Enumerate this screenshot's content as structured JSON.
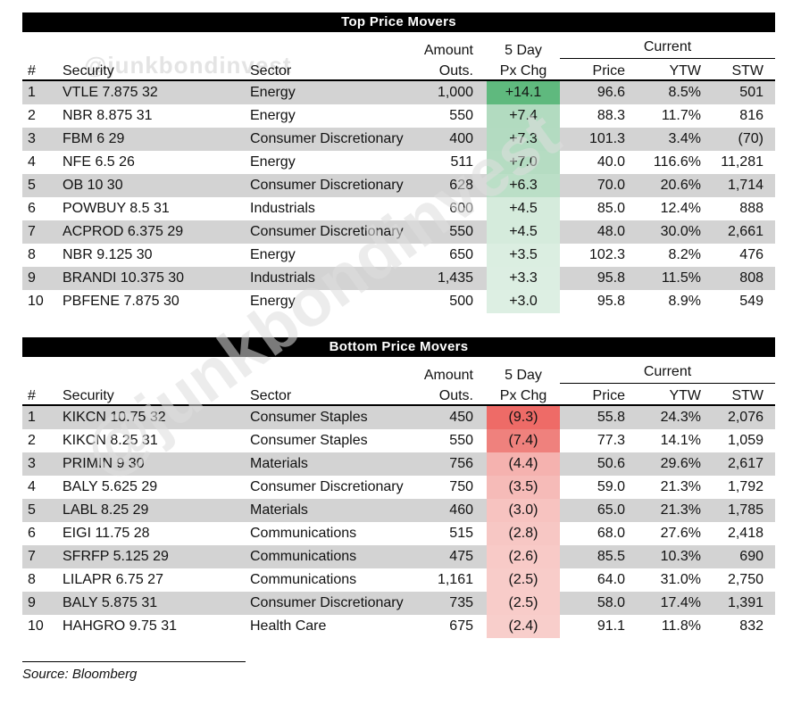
{
  "watermark": {
    "handle": "@junkbondinvest"
  },
  "source_note": "Source: Bloomberg",
  "colors": {
    "row_stripe": "#d3d3d3",
    "positive_max": "#5fb97e",
    "negative_max": "#ee6b67",
    "title_bar_bg": "#000000",
    "title_bar_text": "#ffffff"
  },
  "chart_data": [
    {
      "type": "table",
      "title": "Top Price Movers",
      "header": {
        "num": "#",
        "security": "Security",
        "sector": "Sector",
        "amount_line1": "Amount",
        "amount_line2": "Outs.",
        "five_day_line1": "5 Day",
        "five_day_line2": "Px Chg",
        "current_group": "Current",
        "price": "Price",
        "ytw": "YTW",
        "stw": "STW"
      },
      "rows": [
        {
          "num": "1",
          "security": "VTLE 7.875 32",
          "sector": "Energy",
          "amount_outs": "1,000",
          "px_chg": "+14.1",
          "px_chg_color": "#5fb97e",
          "price": "96.6",
          "ytw": "8.5%",
          "stw": "501"
        },
        {
          "num": "2",
          "security": "NBR 8.875 31",
          "sector": "Energy",
          "amount_outs": "550",
          "px_chg": "+7.4",
          "px_chg_color": "#b2dbc0",
          "price": "88.3",
          "ytw": "11.7%",
          "stw": "816"
        },
        {
          "num": "3",
          "security": "FBM 6 29",
          "sector": "Consumer Discretionary",
          "amount_outs": "400",
          "px_chg": "+7.3",
          "px_chg_color": "#b3dbc1",
          "price": "101.3",
          "ytw": "3.4%",
          "stw": "(70)"
        },
        {
          "num": "4",
          "security": "NFE 6.5 26",
          "sector": "Energy",
          "amount_outs": "511",
          "px_chg": "+7.0",
          "px_chg_color": "#b5dcc2",
          "price": "40.0",
          "ytw": "116.6%",
          "stw": "11,281"
        },
        {
          "num": "5",
          "security": "OB 10 30",
          "sector": "Consumer Discretionary",
          "amount_outs": "628",
          "px_chg": "+6.3",
          "px_chg_color": "#bbdfc7",
          "price": "70.0",
          "ytw": "20.6%",
          "stw": "1,714"
        },
        {
          "num": "6",
          "security": "POWBUY 8.5 31",
          "sector": "Industrials",
          "amount_outs": "600",
          "px_chg": "+4.5",
          "px_chg_color": "#d5ebdc",
          "price": "85.0",
          "ytw": "12.4%",
          "stw": "888"
        },
        {
          "num": "7",
          "security": "ACPROD 6.375 29",
          "sector": "Consumer Discretionary",
          "amount_outs": "550",
          "px_chg": "+4.5",
          "px_chg_color": "#d5ebdc",
          "price": "48.0",
          "ytw": "30.0%",
          "stw": "2,661"
        },
        {
          "num": "8",
          "security": "NBR 9.125 30",
          "sector": "Energy",
          "amount_outs": "650",
          "px_chg": "+3.5",
          "px_chg_color": "#dbeee1",
          "price": "102.3",
          "ytw": "8.2%",
          "stw": "476"
        },
        {
          "num": "9",
          "security": "BRANDI 10.375 30",
          "sector": "Industrials",
          "amount_outs": "1,435",
          "px_chg": "+3.3",
          "px_chg_color": "#dceee2",
          "price": "95.8",
          "ytw": "11.5%",
          "stw": "808"
        },
        {
          "num": "10",
          "security": "PBFENE 7.875 30",
          "sector": "Energy",
          "amount_outs": "500",
          "px_chg": "+3.0",
          "px_chg_color": "#ddefe3",
          "price": "95.8",
          "ytw": "8.9%",
          "stw": "549"
        }
      ]
    },
    {
      "type": "table",
      "title": "Bottom Price Movers",
      "header": {
        "num": "#",
        "security": "Security",
        "sector": "Sector",
        "amount_line1": "Amount",
        "amount_line2": "Outs.",
        "five_day_line1": "5 Day",
        "five_day_line2": "Px Chg",
        "current_group": "Current",
        "price": "Price",
        "ytw": "YTW",
        "stw": "STW"
      },
      "rows": [
        {
          "num": "1",
          "security": "KIKCN 10.75 32",
          "sector": "Consumer Staples",
          "amount_outs": "450",
          "px_chg": "(9.3)",
          "px_chg_color": "#ee6b67",
          "price": "55.8",
          "ytw": "24.3%",
          "stw": "2,076"
        },
        {
          "num": "2",
          "security": "KIKCN 8.25 31",
          "sector": "Consumer Staples",
          "amount_outs": "550",
          "px_chg": "(7.4)",
          "px_chg_color": "#ef817d",
          "price": "77.3",
          "ytw": "14.1%",
          "stw": "1,059"
        },
        {
          "num": "3",
          "security": "PRIMIN 9 30",
          "sector": "Materials",
          "amount_outs": "756",
          "px_chg": "(4.4)",
          "px_chg_color": "#f5b2af",
          "price": "50.6",
          "ytw": "29.6%",
          "stw": "2,617"
        },
        {
          "num": "4",
          "security": "BALY 5.625 29",
          "sector": "Consumer Discretionary",
          "amount_outs": "750",
          "px_chg": "(3.5)",
          "px_chg_color": "#f6bbb8",
          "price": "59.0",
          "ytw": "21.3%",
          "stw": "1,792"
        },
        {
          "num": "5",
          "security": "LABL 8.25 29",
          "sector": "Materials",
          "amount_outs": "460",
          "px_chg": "(3.0)",
          "px_chg_color": "#f7c3c0",
          "price": "65.0",
          "ytw": "21.3%",
          "stw": "1,785"
        },
        {
          "num": "6",
          "security": "EIGI 11.75 28",
          "sector": "Communications",
          "amount_outs": "515",
          "px_chg": "(2.8)",
          "px_chg_color": "#f7c7c4",
          "price": "68.0",
          "ytw": "27.6%",
          "stw": "2,418"
        },
        {
          "num": "7",
          "security": "SFRFP 5.125 29",
          "sector": "Communications",
          "amount_outs": "475",
          "px_chg": "(2.6)",
          "px_chg_color": "#f8cac7",
          "price": "85.5",
          "ytw": "10.3%",
          "stw": "690"
        },
        {
          "num": "8",
          "security": "LILAPR 6.75 27",
          "sector": "Communications",
          "amount_outs": "1,161",
          "px_chg": "(2.5)",
          "px_chg_color": "#f8ccc9",
          "price": "64.0",
          "ytw": "31.0%",
          "stw": "2,750"
        },
        {
          "num": "9",
          "security": "BALY 5.875 31",
          "sector": "Consumer Discretionary",
          "amount_outs": "735",
          "px_chg": "(2.5)",
          "px_chg_color": "#f8ccc9",
          "price": "58.0",
          "ytw": "17.4%",
          "stw": "1,391"
        },
        {
          "num": "10",
          "security": "HAHGRO 9.75 31",
          "sector": "Health Care",
          "amount_outs": "675",
          "px_chg": "(2.4)",
          "px_chg_color": "#f8cecb",
          "price": "91.1",
          "ytw": "11.8%",
          "stw": "832"
        }
      ]
    }
  ]
}
